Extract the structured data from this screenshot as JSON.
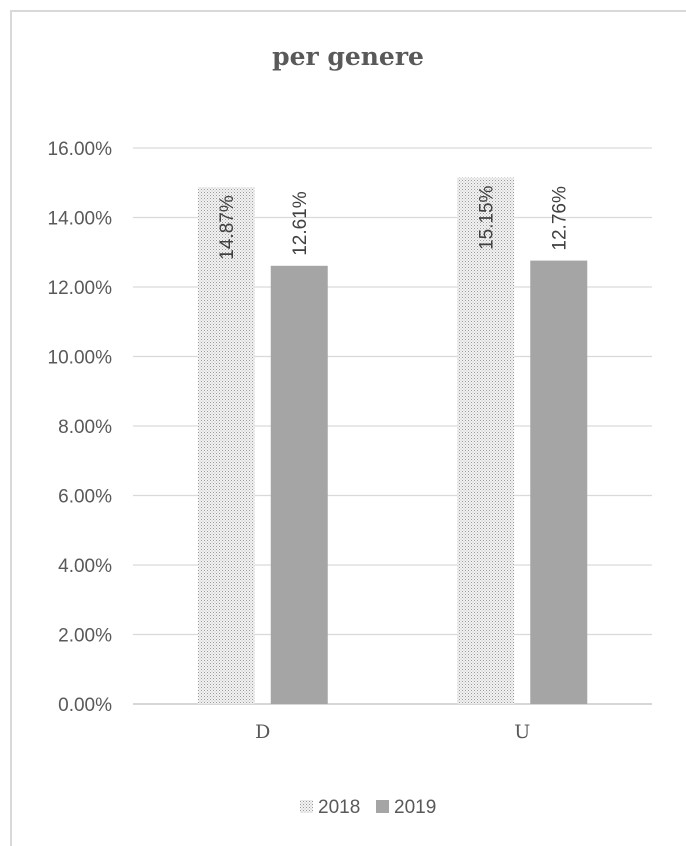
{
  "chart_data": {
    "type": "bar",
    "title": "per genere",
    "categories": [
      "D",
      "U"
    ],
    "series": [
      {
        "name": "2018",
        "values": [
          14.87,
          15.15
        ],
        "labels": [
          "14.87%",
          "15.15%"
        ],
        "pattern": "dotted"
      },
      {
        "name": "2019",
        "values": [
          12.61,
          12.76
        ],
        "labels": [
          "12.61%",
          "12.76%"
        ],
        "color": "#a5a5a5"
      }
    ],
    "ylim": [
      0,
      16
    ],
    "yticks": [
      0,
      2,
      4,
      6,
      8,
      10,
      12,
      14,
      16
    ],
    "ytick_labels": [
      "0.00%",
      "2.00%",
      "4.00%",
      "6.00%",
      "8.00%",
      "10.00%",
      "12.00%",
      "14.00%",
      "16.00%"
    ],
    "grid": true,
    "legend_position": "bottom"
  }
}
